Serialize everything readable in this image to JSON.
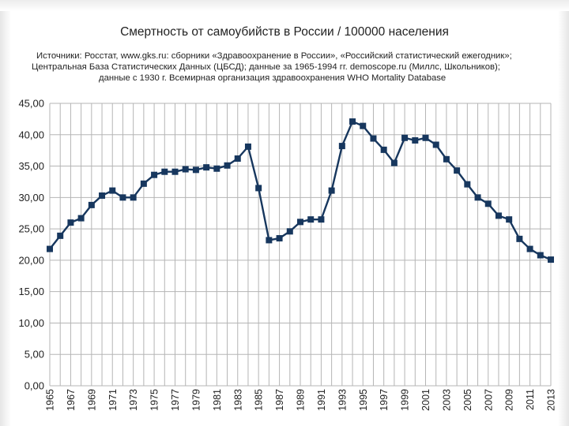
{
  "chart_data": {
    "type": "line",
    "title": "Смертность от самоубийств в России / 100000 населения",
    "subtitle_lines": [
      "Источники: Росстат, www.gks.ru: сборники «Здравоохранение в России», «Российский статистический ежегодник»;",
      "Центральная База Статистических Данных (ЦБСД); данные за 1965-1994 гг. demoscope.ru (Миллс, Школьников);",
      "данные с 1930 г. Всемирная организация здравоохранения WHO Mortality Database"
    ],
    "xlabel": "",
    "ylabel": "",
    "ylim": [
      0,
      45
    ],
    "ytick_step": 5,
    "y_tick_labels": [
      "0,00",
      "5,00",
      "10,00",
      "15,00",
      "20,00",
      "25,00",
      "30,00",
      "35,00",
      "40,00",
      "45,00"
    ],
    "x_tick_labels": [
      "1965",
      "1967",
      "1969",
      "1971",
      "1973",
      "1975",
      "1977",
      "1979",
      "1981",
      "1983",
      "1985",
      "1987",
      "1989",
      "1991",
      "1993",
      "1995",
      "1997",
      "1999",
      "2001",
      "2003",
      "2005",
      "2007",
      "2009",
      "2011",
      "2013"
    ],
    "grid": true,
    "series_color": "#17375e",
    "x": [
      1965,
      1966,
      1967,
      1968,
      1969,
      1970,
      1971,
      1972,
      1973,
      1974,
      1975,
      1976,
      1977,
      1978,
      1979,
      1980,
      1981,
      1982,
      1983,
      1984,
      1985,
      1986,
      1987,
      1988,
      1989,
      1990,
      1991,
      1992,
      1993,
      1994,
      1995,
      1996,
      1997,
      1998,
      1999,
      2000,
      2001,
      2002,
      2003,
      2004,
      2005,
      2006,
      2007,
      2008,
      2009,
      2010,
      2011,
      2012,
      2013
    ],
    "series": [
      {
        "values": [
          21.8,
          23.9,
          26.0,
          26.7,
          28.8,
          30.3,
          31.1,
          30.0,
          30.0,
          32.2,
          33.6,
          34.1,
          34.1,
          34.5,
          34.4,
          34.8,
          34.6,
          35.1,
          36.2,
          38.1,
          31.5,
          23.2,
          23.5,
          24.6,
          26.1,
          26.5,
          26.5,
          31.1,
          38.2,
          42.1,
          41.4,
          39.4,
          37.6,
          35.5,
          39.5,
          39.1,
          39.5,
          38.4,
          36.1,
          34.3,
          32.1,
          30.0,
          29.0,
          27.1,
          26.5,
          23.4,
          21.8,
          20.8,
          20.1
        ]
      }
    ]
  }
}
